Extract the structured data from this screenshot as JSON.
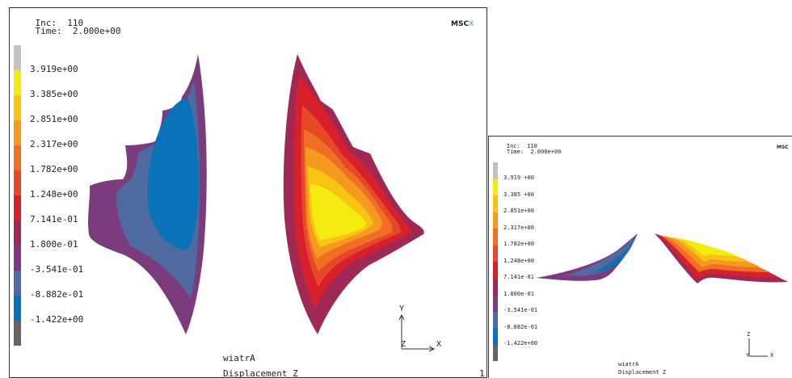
{
  "main": {
    "inc_label": "Inc:",
    "inc_value": "110",
    "time_label": "Time:",
    "time_value": "2.000e+00",
    "logo_text": "MSC",
    "logo_mark": "X",
    "legend": [
      "3.919e+00",
      "3.385e+00",
      "2.851e+00",
      "2.317e+00",
      "1.782e+00",
      "1.248e+00",
      "7.141e-01",
      "1.800e-01",
      "-3.541e-01",
      "-8.882e-01",
      "-1.422e+00"
    ],
    "job_name": "wiatrA",
    "quantity": "Displacement Z",
    "page": "1",
    "axes": {
      "y": "Y",
      "x": "X",
      "z": "Z"
    }
  },
  "thumb": {
    "inc_label": "Inc:",
    "inc_value": "110",
    "time_label": "Time:",
    "time_value": "2.000e+00",
    "logo_text": "MSC",
    "legend": [
      "3.919 +00",
      "3.385 +00",
      "2.851e+00",
      "2.317e+00",
      "1.782e+00",
      "1.248e+00",
      "7.141e-01",
      "1.800e-01",
      "-3.541e-01",
      "-8.882e-01",
      "-1.422e+00"
    ],
    "job_name": "wiatrA",
    "quantity": "Displacement Z",
    "axes": {
      "z": "Z",
      "x": "X",
      "y": "Y"
    }
  },
  "colors": {
    "scale": [
      "#c8c0c0",
      "#f4ec10",
      "#f7c414",
      "#f59a1e",
      "#ef7024",
      "#e8482a",
      "#d8202c",
      "#a02855",
      "#7a3c7c",
      "#4e6aa0",
      "#0a72b8",
      "#6c6060"
    ]
  }
}
